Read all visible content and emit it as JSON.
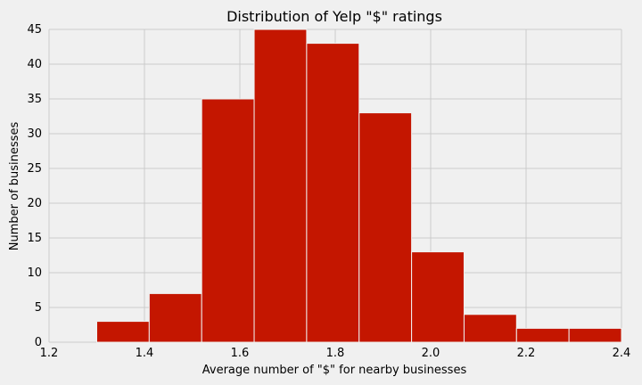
{
  "chart_data": {
    "type": "bar",
    "title": "Distribution of Yelp \"$\" ratings",
    "xlabel": "Average number of \"$\" for nearby businesses",
    "ylabel": "Number of businesses",
    "xlim": [
      1.2,
      2.4
    ],
    "ylim": [
      0,
      45
    ],
    "xticks": [
      1.2,
      1.4,
      1.6,
      1.8,
      2.0,
      2.2,
      2.4
    ],
    "xtick_labels": [
      "1.2",
      "1.4",
      "1.6",
      "1.8",
      "2.0",
      "2.2",
      "2.4"
    ],
    "yticks": [
      0,
      5,
      10,
      15,
      20,
      25,
      30,
      35,
      40,
      45
    ],
    "ytick_labels": [
      "0",
      "5",
      "10",
      "15",
      "20",
      "25",
      "30",
      "35",
      "40",
      "45"
    ],
    "grid": true,
    "bins": [
      {
        "start": 1.3,
        "end": 1.41,
        "count": 3
      },
      {
        "start": 1.41,
        "end": 1.52,
        "count": 7
      },
      {
        "start": 1.52,
        "end": 1.63,
        "count": 35
      },
      {
        "start": 1.63,
        "end": 1.74,
        "count": 45
      },
      {
        "start": 1.74,
        "end": 1.85,
        "count": 43
      },
      {
        "start": 1.85,
        "end": 1.96,
        "count": 33
      },
      {
        "start": 1.96,
        "end": 2.07,
        "count": 13
      },
      {
        "start": 2.07,
        "end": 2.18,
        "count": 4
      },
      {
        "start": 2.18,
        "end": 2.29,
        "count": 2
      },
      {
        "start": 2.29,
        "end": 2.4,
        "count": 2
      }
    ],
    "bar_color": "#c41600",
    "background_color": "#f0f0f0"
  }
}
